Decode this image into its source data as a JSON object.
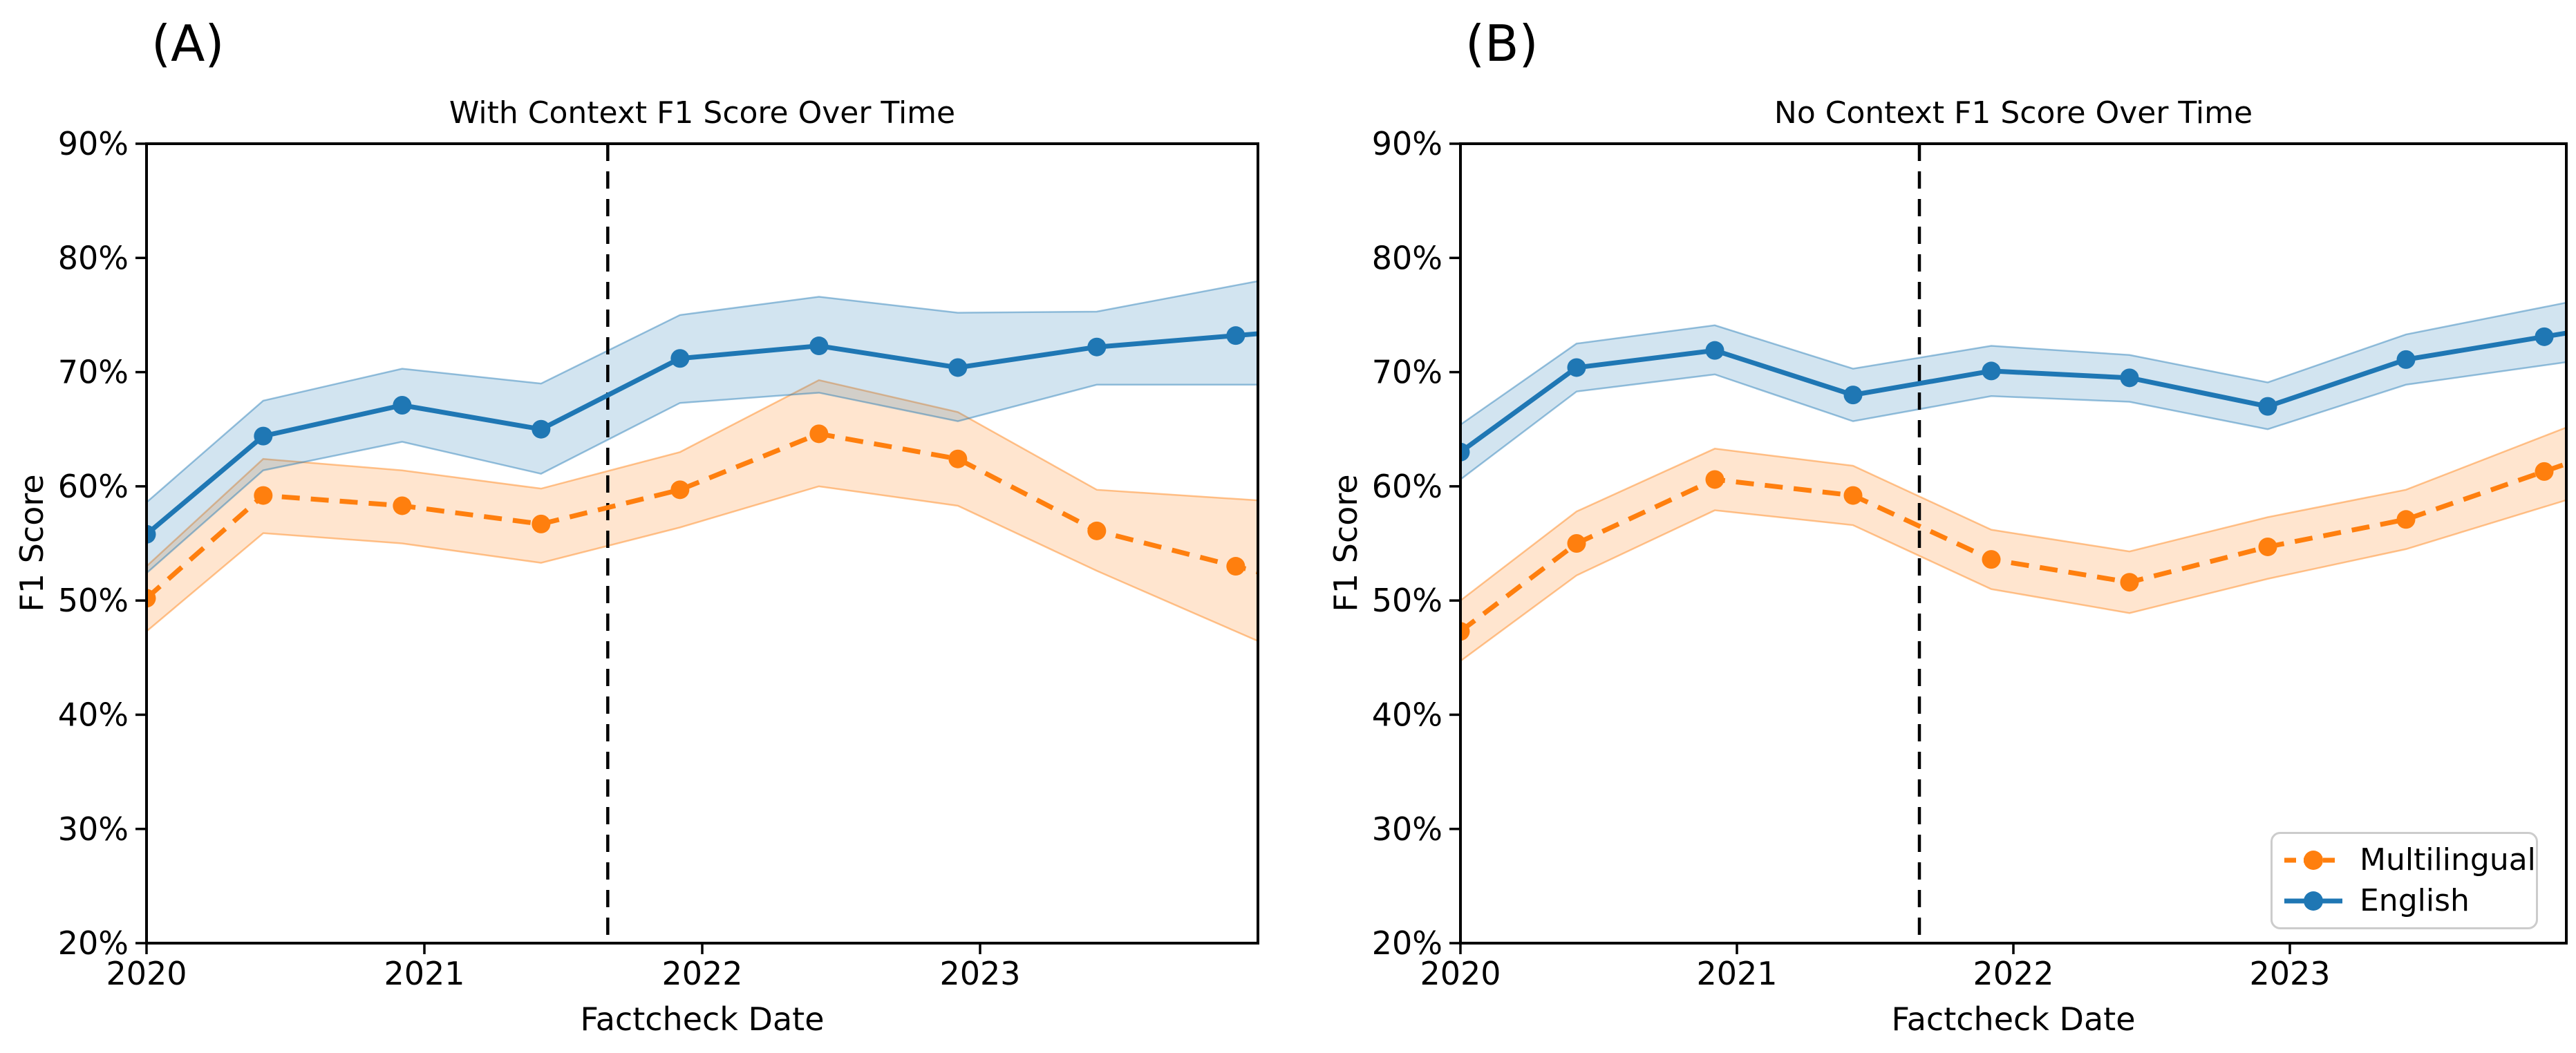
{
  "figure": {
    "panel_a_label": "(A)",
    "panel_b_label": "(B)"
  },
  "colors": {
    "english": "#1f77b4",
    "multilingual": "#ff7f0e",
    "cutoff_line": "#000000",
    "axis": "#000000",
    "legend_border": "#cccccc"
  },
  "legend": {
    "position": "lower right of panel B",
    "items": [
      {
        "label": "Multilingual",
        "color": "#ff7f0e",
        "linestyle": "dashed",
        "marker": "circle"
      },
      {
        "label": "English",
        "color": "#1f77b4",
        "linestyle": "solid",
        "marker": "circle"
      }
    ]
  },
  "chart_data": [
    {
      "type": "line",
      "title": "With Context F1 Score Over Time",
      "xlabel": "Factcheck Date",
      "ylabel": "F1 Score",
      "xlim": [
        2020,
        2024
      ],
      "ylim": [
        20,
        90
      ],
      "grid": false,
      "x_ticks": [
        2020,
        2021,
        2022,
        2023
      ],
      "x_tick_labels": [
        "2020",
        "2021",
        "2022",
        "2023"
      ],
      "y_ticks": [
        20,
        30,
        40,
        50,
        60,
        70,
        80,
        90
      ],
      "y_tick_labels": [
        "20%",
        "30%",
        "40%",
        "50%",
        "60%",
        "70%",
        "80%",
        "90%"
      ],
      "cutoff_x": 2021.66,
      "x": [
        2020.0,
        2020.42,
        2020.92,
        2021.42,
        2021.92,
        2022.42,
        2022.92,
        2023.42,
        2023.92
      ],
      "series": [
        {
          "name": "Multilingual",
          "color": "#ff7f0e",
          "linestyle": "dashed",
          "values": [
            50.2,
            59.2,
            58.3,
            56.7,
            59.7,
            64.6,
            62.4,
            56.1,
            53.0
          ],
          "band_upper": [
            53.0,
            62.4,
            61.4,
            59.8,
            63.0,
            69.3,
            66.5,
            59.7,
            58.9
          ],
          "band_lower": [
            47.3,
            55.9,
            55.0,
            53.3,
            56.4,
            60.0,
            58.3,
            52.6,
            47.3
          ]
        },
        {
          "name": "English",
          "color": "#1f77b4",
          "linestyle": "solid",
          "values": [
            55.8,
            64.4,
            67.1,
            65.0,
            71.2,
            72.3,
            70.4,
            72.2,
            73.2
          ],
          "band_upper": [
            58.6,
            67.5,
            70.3,
            69.0,
            75.0,
            76.6,
            75.2,
            75.3,
            77.6
          ],
          "band_lower": [
            52.4,
            61.4,
            63.9,
            61.1,
            67.3,
            68.2,
            65.7,
            68.9,
            68.9
          ]
        }
      ]
    },
    {
      "type": "line",
      "title": "No Context F1 Score Over Time",
      "xlabel": "Factcheck Date",
      "ylabel": "F1 Score",
      "xlim": [
        2020,
        2024
      ],
      "ylim": [
        20,
        90
      ],
      "grid": false,
      "x_ticks": [
        2020,
        2021,
        2022,
        2023
      ],
      "x_tick_labels": [
        "2020",
        "2021",
        "2022",
        "2023"
      ],
      "y_ticks": [
        20,
        30,
        40,
        50,
        60,
        70,
        80,
        90
      ],
      "y_tick_labels": [
        "20%",
        "30%",
        "40%",
        "50%",
        "60%",
        "70%",
        "80%",
        "90%"
      ],
      "cutoff_x": 2021.66,
      "x": [
        2020.0,
        2020.42,
        2020.92,
        2021.42,
        2021.92,
        2022.42,
        2022.92,
        2023.42,
        2023.92
      ],
      "series": [
        {
          "name": "Multilingual",
          "color": "#ff7f0e",
          "linestyle": "dashed",
          "values": [
            47.3,
            55.0,
            60.6,
            59.2,
            53.6,
            51.6,
            54.7,
            57.1,
            61.3
          ],
          "band_upper": [
            50.0,
            57.8,
            63.3,
            61.8,
            56.2,
            54.3,
            57.3,
            59.7,
            64.4
          ],
          "band_lower": [
            44.7,
            52.2,
            57.9,
            56.6,
            51.0,
            48.9,
            51.9,
            54.5,
            58.2
          ]
        },
        {
          "name": "English",
          "color": "#1f77b4",
          "linestyle": "solid",
          "values": [
            63.0,
            70.4,
            71.9,
            68.0,
            70.1,
            69.5,
            67.0,
            71.1,
            73.1
          ],
          "band_upper": [
            65.4,
            72.5,
            74.1,
            70.3,
            72.3,
            71.5,
            69.1,
            73.3,
            75.7
          ],
          "band_lower": [
            60.6,
            68.3,
            69.8,
            65.7,
            67.9,
            67.4,
            65.0,
            68.9,
            70.6
          ]
        }
      ]
    }
  ]
}
